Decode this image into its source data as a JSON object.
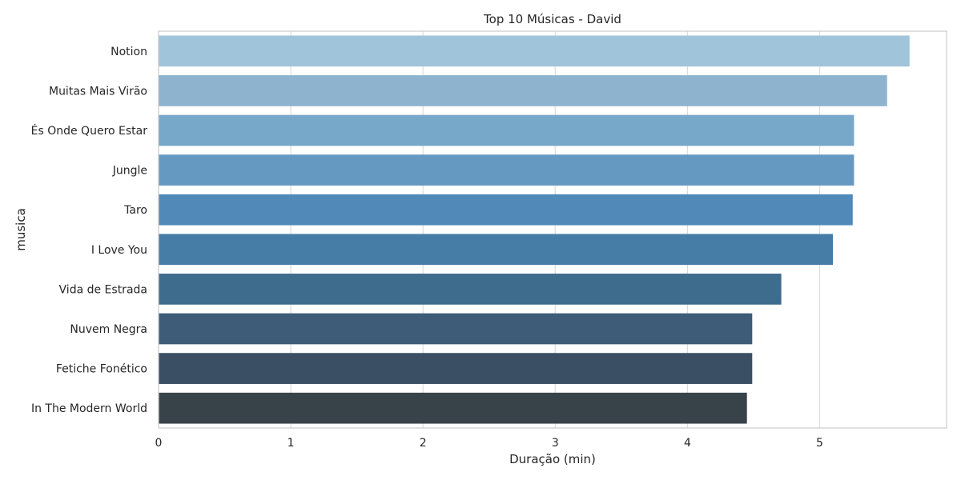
{
  "chart_data": {
    "type": "bar",
    "orientation": "horizontal",
    "title": "Top 10 Músicas - David",
    "xlabel": "Duração (min)",
    "ylabel": "musica",
    "categories": [
      "Notion",
      "Muitas Mais Virão",
      "És Onde Quero Estar",
      "Jungle",
      "Taro",
      "I Love You",
      "Vida de Estrada",
      "Nuvem Negra",
      "Fetiche Fonético",
      "In The Modern World"
    ],
    "values": [
      5.68,
      5.51,
      5.26,
      5.26,
      5.25,
      5.1,
      4.71,
      4.49,
      4.49,
      4.45
    ],
    "x_ticks": [
      0,
      1,
      2,
      3,
      4,
      5
    ],
    "xlim": [
      0,
      5.96
    ],
    "grid": "vertical",
    "colors": [
      "#a0c4da",
      "#8db3cf",
      "#77a7c9",
      "#6699c2",
      "#5189b8",
      "#457da7",
      "#3e6c8d",
      "#3e5b77",
      "#3a4f63",
      "#384349"
    ]
  }
}
